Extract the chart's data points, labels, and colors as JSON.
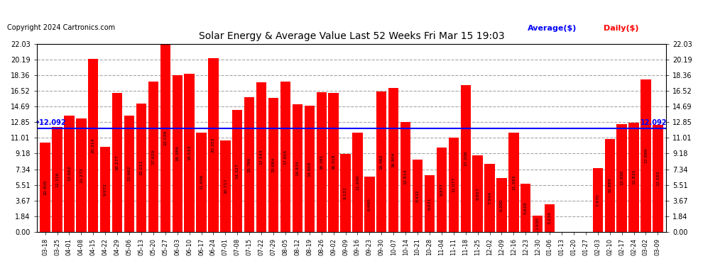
{
  "title": "Solar Energy & Average Value Last 52 Weeks Fri Mar 15 19:03",
  "copyright": "Copyright 2024 Cartronics.com",
  "average_value": 12.092,
  "average_label": "12.092",
  "bar_color": "#ff0000",
  "average_line_color": "#0000ff",
  "average_text_color": "#0000ff",
  "daily_text_color": "#ff0000",
  "legend_avg": "Average($)",
  "legend_daily": "Daily($)",
  "ylim": [
    0.0,
    22.03
  ],
  "yticks": [
    0.0,
    1.84,
    3.67,
    5.51,
    7.34,
    9.18,
    11.01,
    12.85,
    14.69,
    16.52,
    18.36,
    20.19,
    22.03
  ],
  "categories": [
    "03-18",
    "03-25",
    "04-01",
    "04-08",
    "04-15",
    "04-22",
    "04-29",
    "05-06",
    "05-13",
    "05-20",
    "05-27",
    "06-03",
    "06-10",
    "06-17",
    "06-24",
    "07-01",
    "07-08",
    "07-15",
    "07-22",
    "07-29",
    "08-05",
    "08-12",
    "08-19",
    "08-26",
    "09-02",
    "09-09",
    "09-16",
    "09-23",
    "09-30",
    "10-07",
    "10-14",
    "10-21",
    "10-28",
    "11-04",
    "11-11",
    "11-18",
    "11-25",
    "12-02",
    "12-09",
    "12-16",
    "12-23",
    "12-30",
    "01-06",
    "01-13",
    "01-20",
    "01-27",
    "02-03",
    "02-10",
    "02-17",
    "02-24",
    "03-02",
    "03-09"
  ],
  "values": [
    10.455,
    12.316,
    13.662,
    13.272,
    20.314,
    9.972,
    16.277,
    13.662,
    15.011,
    17.629,
    22.028,
    18.384,
    18.553,
    11.646,
    20.352,
    10.717,
    14.327,
    15.76,
    17.543,
    15.684,
    17.605,
    14.934,
    14.809,
    16.381,
    16.318,
    9.133,
    11.64,
    6.49,
    16.46,
    16.904,
    12.914,
    8.432,
    6.631,
    9.877,
    11.077,
    17.206,
    8.957,
    7.944,
    6.29,
    11.593,
    5.629,
    1.93,
    3.234,
    0.0,
    0.0,
    0.013,
    7.47,
    10.889,
    12.656,
    12.825,
    17.899,
    12.582
  ]
}
